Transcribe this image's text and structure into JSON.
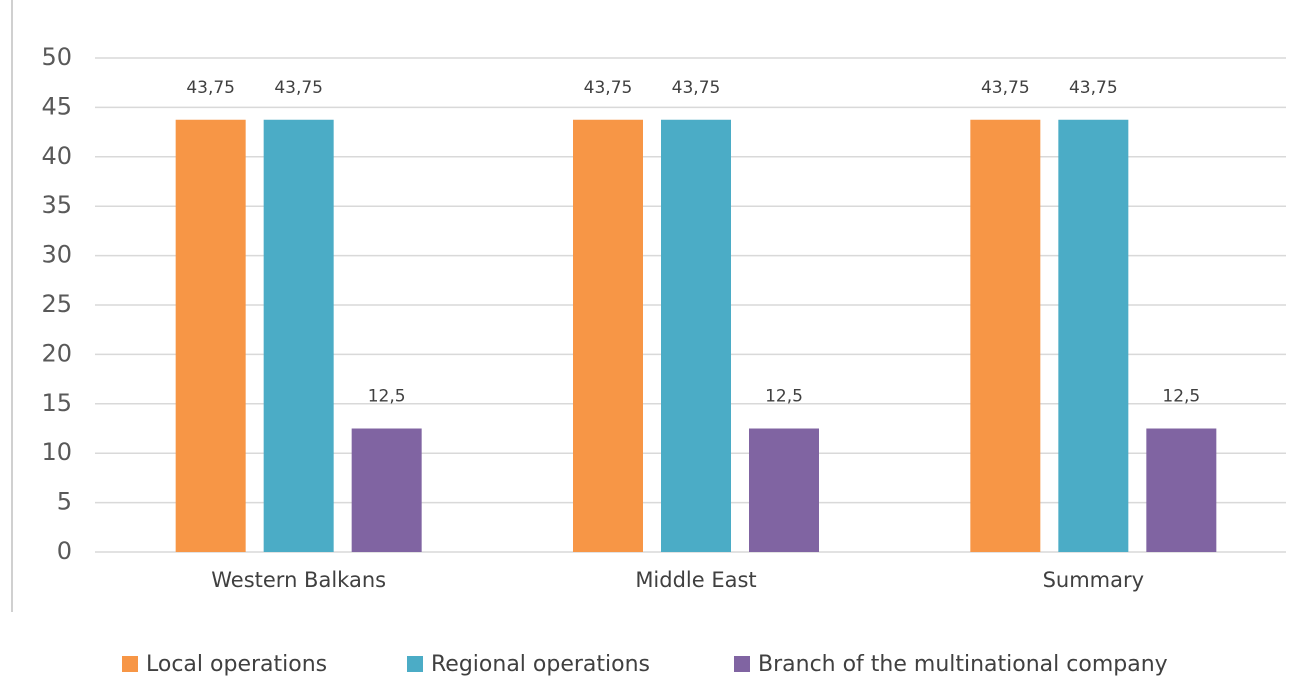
{
  "chart_data": {
    "type": "bar",
    "categories": [
      "Western Balkans",
      "Middle East",
      "Summary"
    ],
    "series": [
      {
        "name": "Local operations",
        "color": "#f79646",
        "values": [
          43.75,
          43.75,
          43.75
        ],
        "value_labels": [
          "43,75",
          "43,75",
          "43,75"
        ]
      },
      {
        "name": "Regional operations",
        "color": "#4bacc6",
        "values": [
          43.75,
          43.75,
          43.75
        ],
        "value_labels": [
          "43,75",
          "43,75",
          "43,75"
        ]
      },
      {
        "name": "Branch of the multinational company",
        "color": "#8064a2",
        "values": [
          12.5,
          12.5,
          12.5
        ],
        "value_labels": [
          "12,5",
          "12,5",
          "12,5"
        ]
      }
    ],
    "ylim": [
      0,
      50
    ],
    "yticks": [
      0,
      5,
      10,
      15,
      20,
      25,
      30,
      35,
      40,
      45,
      50
    ],
    "grid": true,
    "legend": "bottom"
  }
}
